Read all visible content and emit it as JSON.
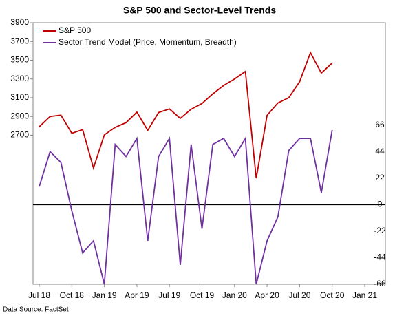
{
  "chart_data": {
    "type": "line",
    "title": "S&P 500 and Sector-Level Trends",
    "source": "Data Source: FactSet",
    "x": [
      "2018-07",
      "2018-08",
      "2018-09",
      "2018-10",
      "2018-11",
      "2018-12",
      "2019-01",
      "2019-02",
      "2019-03",
      "2019-04",
      "2019-05",
      "2019-06",
      "2019-07",
      "2019-08",
      "2019-09",
      "2019-10",
      "2019-11",
      "2019-12",
      "2020-01",
      "2020-02",
      "2020-03",
      "2020-04",
      "2020-05",
      "2020-06",
      "2020-07",
      "2020-08",
      "2020-09",
      "2020-10"
    ],
    "xlim": [
      "2018-07",
      "2021-01"
    ],
    "xticks": [
      {
        "value": "2018-07",
        "label": "Jul 18"
      },
      {
        "value": "2018-10",
        "label": "Oct 18"
      },
      {
        "value": "2019-01",
        "label": "Jan 19"
      },
      {
        "value": "2019-04",
        "label": "Apr 19"
      },
      {
        "value": "2019-07",
        "label": "Jul 19"
      },
      {
        "value": "2019-10",
        "label": "Oct 19"
      },
      {
        "value": "2020-01",
        "label": "Jan 20"
      },
      {
        "value": "2020-04",
        "label": "Apr 20"
      },
      {
        "value": "2020-07",
        "label": "Jul 20"
      },
      {
        "value": "2020-10",
        "label": "Oct 20"
      },
      {
        "value": "2021-01",
        "label": "Jan 21"
      }
    ],
    "ylim": [
      1110,
      3900
    ],
    "yticks": [
      2700,
      2900,
      3100,
      3300,
      3500,
      3700,
      3900
    ],
    "y2lim": [
      -66,
      151
    ],
    "y2ticks": [
      -66,
      -44,
      -22,
      0,
      22,
      44,
      66
    ],
    "legend": "top-left",
    "series": [
      {
        "name": "S&P 500",
        "color": "#c00000",
        "values": [
          2790,
          2900,
          2914,
          2720,
          2760,
          2350,
          2704,
          2784,
          2834,
          2946,
          2752,
          2942,
          2980,
          2880,
          2977,
          3038,
          3141,
          3231,
          3300,
          3380,
          2240,
          2912,
          3044,
          3100,
          3271,
          3580,
          3363,
          3470
        ]
      },
      {
        "name": "Sector Trend Model (Price, Momentum, Breadth)",
        "color": "#7030a0",
        "axis": "y2",
        "values": [
          15,
          44,
          35,
          -5,
          -40,
          -30,
          -66,
          50,
          40,
          55,
          -30,
          40,
          55,
          -50,
          50,
          -20,
          50,
          55,
          40,
          55,
          -66,
          -30,
          -10,
          45,
          55,
          55,
          10,
          62
        ]
      }
    ]
  }
}
